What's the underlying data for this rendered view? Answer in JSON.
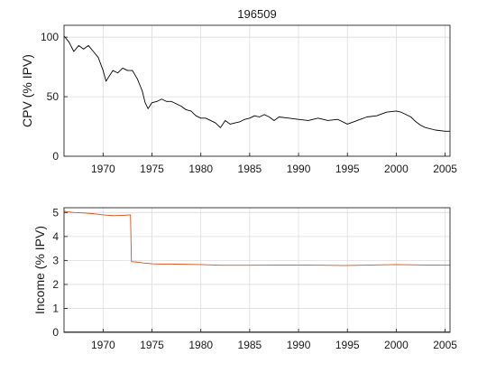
{
  "chart_data": [
    {
      "type": "line",
      "title": "196509",
      "xlabel": "",
      "ylabel": "CPV (% IPV)",
      "xlim": [
        1966,
        2005.5
      ],
      "ylim": [
        0,
        110
      ],
      "grid": true,
      "x_ticks": [
        1970,
        1975,
        1980,
        1985,
        1990,
        1995,
        2000,
        2005
      ],
      "x_tick_labels": [
        "1970",
        "1975",
        "1980",
        "1985",
        "1990",
        "1995",
        "2000",
        "2005"
      ],
      "y_ticks": [
        0,
        50,
        100
      ],
      "y_tick_labels": [
        "0",
        "50",
        "100"
      ],
      "series": [
        {
          "color": "#000000",
          "x": [
            1966.0,
            1966.5,
            1967.0,
            1967.5,
            1968.0,
            1968.5,
            1969.0,
            1969.5,
            1970.0,
            1970.3,
            1970.6,
            1971.0,
            1971.5,
            1972.0,
            1972.5,
            1973.0,
            1973.5,
            1974.0,
            1974.3,
            1974.6,
            1975.0,
            1975.5,
            1976.0,
            1976.5,
            1977.0,
            1977.5,
            1978.0,
            1978.5,
            1979.0,
            1979.5,
            1980.0,
            1980.5,
            1981.0,
            1981.5,
            1982.0,
            1982.5,
            1983.0,
            1983.5,
            1984.0,
            1984.5,
            1985.0,
            1985.5,
            1986.0,
            1986.5,
            1987.0,
            1987.5,
            1988.0,
            1989.0,
            1990.0,
            1991.0,
            1992.0,
            1993.0,
            1994.0,
            1995.0,
            1996.0,
            1997.0,
            1998.0,
            1999.0,
            2000.0,
            2000.5,
            2001.0,
            2001.5,
            2002.0,
            2002.5,
            2003.0,
            2004.0,
            2005.0,
            2005.5
          ],
          "y": [
            101,
            96,
            88,
            93,
            90,
            93,
            88,
            83,
            72,
            63,
            67,
            72,
            70,
            74,
            72,
            72,
            65,
            55,
            45,
            40,
            45,
            46,
            48,
            46,
            46,
            44,
            42,
            39,
            38,
            34,
            32,
            32,
            30,
            28,
            24,
            30,
            27,
            28,
            29,
            31,
            32,
            34,
            33,
            35,
            33,
            30,
            33,
            32,
            31,
            30,
            32,
            30,
            31,
            27,
            30,
            33,
            34,
            37,
            38,
            37,
            35,
            33,
            29,
            26,
            24,
            22,
            21,
            21
          ]
        }
      ]
    },
    {
      "type": "line",
      "title": "",
      "xlabel": "",
      "ylabel": "Income (% IPV)",
      "xlim": [
        1966,
        2005.5
      ],
      "ylim": [
        0,
        5.2
      ],
      "grid": true,
      "x_ticks": [
        1970,
        1975,
        1980,
        1985,
        1990,
        1995,
        2000,
        2005
      ],
      "x_tick_labels": [
        "1970",
        "1975",
        "1980",
        "1985",
        "1990",
        "1995",
        "2000",
        "2005"
      ],
      "y_ticks": [
        0,
        1,
        2,
        3,
        4,
        5
      ],
      "y_tick_labels": [
        "0",
        "1",
        "2",
        "3",
        "4",
        "5"
      ],
      "series": [
        {
          "color": "#d95319",
          "x": [
            1966.0,
            1967.0,
            1968.0,
            1969.0,
            1970.0,
            1971.0,
            1972.0,
            1972.8,
            1972.9,
            1973.5,
            1974.0,
            1975.0,
            1976.0,
            1977.0,
            1978.0,
            1980.0,
            1982.0,
            1985.0,
            1990.0,
            1995.0,
            2000.0,
            2003.0,
            2005.5
          ],
          "y": [
            5.05,
            5.0,
            4.98,
            4.95,
            4.9,
            4.87,
            4.88,
            4.9,
            2.95,
            2.93,
            2.9,
            2.86,
            2.85,
            2.85,
            2.84,
            2.83,
            2.8,
            2.8,
            2.81,
            2.79,
            2.83,
            2.81,
            2.8
          ]
        },
        {
          "color": "#0072bd",
          "x": [
            1966.0,
            2005.5
          ],
          "y": [
            0.02,
            0.02
          ]
        }
      ]
    }
  ]
}
